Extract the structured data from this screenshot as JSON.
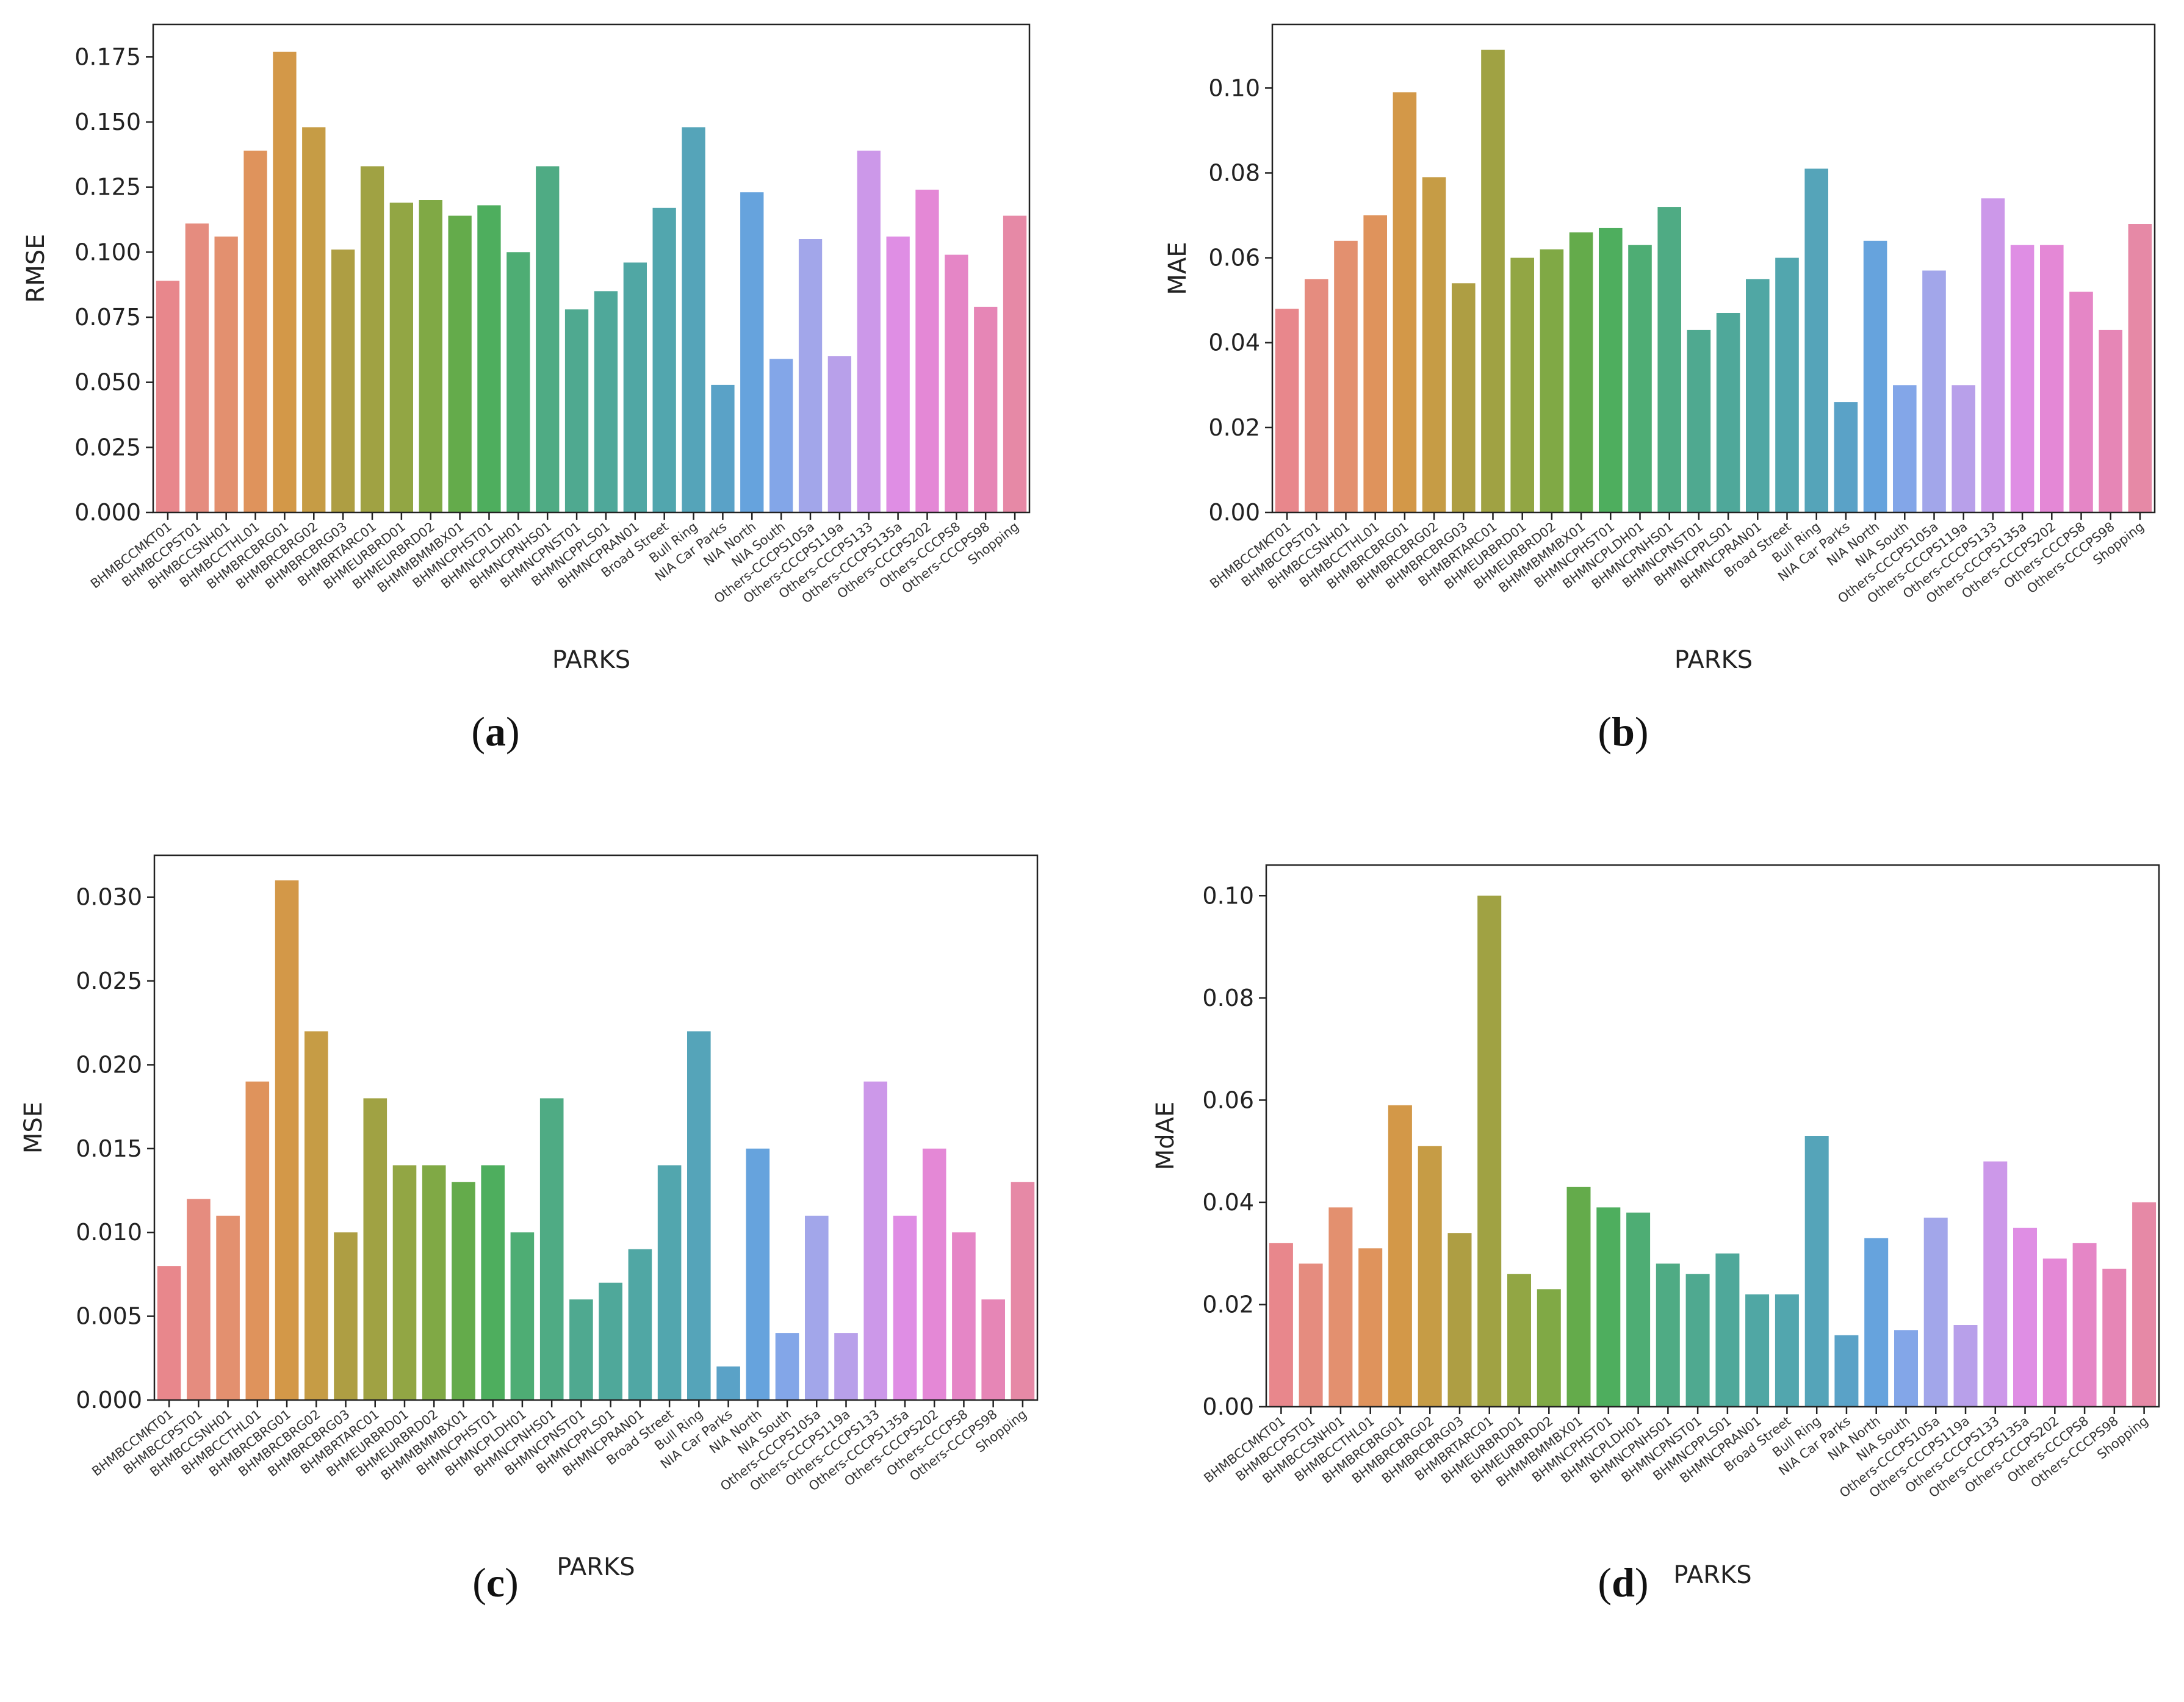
{
  "figure": {
    "colors": [
      "#e8878c",
      "#e58c7f",
      "#e3906f",
      "#df935c",
      "#d39848",
      "#c69c45",
      "#ae9e43",
      "#a0a243",
      "#92a644",
      "#80a945",
      "#64ab4b",
      "#4eae5e",
      "#4ead74",
      "#4fab84",
      "#4fa990",
      "#4fa89a",
      "#50a7a4",
      "#52a6ae",
      "#55a4b9",
      "#5aa2c7",
      "#66a3dd",
      "#83a6e8",
      "#a2a6ea",
      "#b8a0ea",
      "#cc98e9",
      "#df8ee4",
      "#e488d6",
      "#e586c6",
      "#e686b6",
      "#e689a6"
    ],
    "panels": [
      {
        "id": "a",
        "caption": "(a)",
        "chart_data": {
          "type": "bar",
          "title": "",
          "xlabel": "PARKS",
          "ylabel": "RMSE",
          "ylim": [
            0,
            0.1875
          ],
          "yticks": [
            0,
            0.025,
            0.05,
            0.075,
            0.1,
            0.125,
            0.15,
            0.175
          ],
          "ytick_labels": [
            "0.000",
            "0.025",
            "0.050",
            "0.075",
            "0.100",
            "0.125",
            "0.150",
            "0.175"
          ],
          "categories": [
            "BHMBCCMKT01",
            "BHMBCCPST01",
            "BHMBCCSNH01",
            "BHMBCCTHL01",
            "BHMBRCBRG01",
            "BHMBRCBRG02",
            "BHMBRCBRG03",
            "BHMBRTARC01",
            "BHMEURBRD01",
            "BHMEURBRD02",
            "BHMMBMMBX01",
            "BHMNCPHST01",
            "BHMNCPLDH01",
            "BHMNCPNHS01",
            "BHMNCPNST01",
            "BHMNCPPLS01",
            "BHMNCPRAN01",
            "Broad Street",
            "Bull Ring",
            "NIA Car Parks",
            "NIA North",
            "NIA South",
            "Others-CCCPS105a",
            "Others-CCCPS119a",
            "Others-CCCPS133",
            "Others-CCCPS135a",
            "Others-CCCPS202",
            "Others-CCCPS8",
            "Others-CCCPS98",
            "Shopping"
          ],
          "values": [
            0.089,
            0.111,
            0.106,
            0.139,
            0.177,
            0.148,
            0.101,
            0.133,
            0.119,
            0.12,
            0.114,
            0.118,
            0.1,
            0.133,
            0.078,
            0.085,
            0.096,
            0.117,
            0.148,
            0.049,
            0.123,
            0.059,
            0.105,
            0.06,
            0.139,
            0.106,
            0.124,
            0.099,
            0.079,
            0.114
          ]
        }
      },
      {
        "id": "b",
        "caption": "(b)",
        "chart_data": {
          "type": "bar",
          "title": "",
          "xlabel": "PARKS",
          "ylabel": "MAE",
          "ylim": [
            0,
            0.115
          ],
          "yticks": [
            0,
            0.02,
            0.04,
            0.06,
            0.08,
            0.1
          ],
          "ytick_labels": [
            "0.00",
            "0.02",
            "0.04",
            "0.06",
            "0.08",
            "0.10"
          ],
          "categories": [
            "BHMBCCMKT01",
            "BHMBCCPST01",
            "BHMBCCSNH01",
            "BHMBCCTHL01",
            "BHMBRCBRG01",
            "BHMBRCBRG02",
            "BHMBRCBRG03",
            "BHMBRTARC01",
            "BHMEURBRD01",
            "BHMEURBRD02",
            "BHMMBMMBX01",
            "BHMNCPHST01",
            "BHMNCPLDH01",
            "BHMNCPNHS01",
            "BHMNCPNST01",
            "BHMNCPPLS01",
            "BHMNCPRAN01",
            "Broad Street",
            "Bull Ring",
            "NIA Car Parks",
            "NIA North",
            "NIA South",
            "Others-CCCPS105a",
            "Others-CCCPS119a",
            "Others-CCCPS133",
            "Others-CCCPS135a",
            "Others-CCCPS202",
            "Others-CCCPS8",
            "Others-CCCPS98",
            "Shopping"
          ],
          "values": [
            0.048,
            0.055,
            0.064,
            0.07,
            0.099,
            0.079,
            0.054,
            0.109,
            0.06,
            0.062,
            0.066,
            0.067,
            0.063,
            0.072,
            0.043,
            0.047,
            0.055,
            0.06,
            0.081,
            0.026,
            0.064,
            0.03,
            0.057,
            0.03,
            0.074,
            0.063,
            0.063,
            0.052,
            0.043,
            0.068
          ]
        }
      },
      {
        "id": "c",
        "caption": "(c)",
        "chart_data": {
          "type": "bar",
          "title": "",
          "xlabel": "PARKS",
          "ylabel": "MSE",
          "ylim": [
            0,
            0.0325
          ],
          "yticks": [
            0,
            0.005,
            0.01,
            0.015,
            0.02,
            0.025,
            0.03
          ],
          "ytick_labels": [
            "0.000",
            "0.005",
            "0.010",
            "0.015",
            "0.020",
            "0.025",
            "0.030"
          ],
          "categories": [
            "BHMBCCMKT01",
            "BHMBCCPST01",
            "BHMBCCSNH01",
            "BHMBCCTHL01",
            "BHMBRCBRG01",
            "BHMBRCBRG02",
            "BHMBRCBRG03",
            "BHMBRTARC01",
            "BHMEURBRD01",
            "BHMEURBRD02",
            "BHMMBMMBX01",
            "BHMNCPHST01",
            "BHMNCPLDH01",
            "BHMNCPNHS01",
            "BHMNCPNST01",
            "BHMNCPPLS01",
            "BHMNCPRAN01",
            "Broad Street",
            "Bull Ring",
            "NIA Car Parks",
            "NIA North",
            "NIA South",
            "Others-CCCPS105a",
            "Others-CCCPS119a",
            "Others-CCCPS133",
            "Others-CCCPS135a",
            "Others-CCCPS202",
            "Others-CCCPS8",
            "Others-CCCPS98",
            "Shopping"
          ],
          "values": [
            0.008,
            0.012,
            0.011,
            0.019,
            0.031,
            0.022,
            0.01,
            0.018,
            0.014,
            0.014,
            0.013,
            0.014,
            0.01,
            0.018,
            0.006,
            0.007,
            0.009,
            0.014,
            0.022,
            0.002,
            0.015,
            0.004,
            0.011,
            0.004,
            0.019,
            0.011,
            0.015,
            0.01,
            0.006,
            0.013
          ]
        }
      },
      {
        "id": "d",
        "caption": "(d)",
        "chart_data": {
          "type": "bar",
          "title": "",
          "xlabel": "PARKS",
          "ylabel": "MdAE",
          "ylim": [
            0,
            0.106
          ],
          "yticks": [
            0,
            0.02,
            0.04,
            0.06,
            0.08,
            0.1
          ],
          "ytick_labels": [
            "0.00",
            "0.02",
            "0.04",
            "0.06",
            "0.08",
            "0.10"
          ],
          "categories": [
            "BHMBCCMKT01",
            "BHMBCCPST01",
            "BHMBCCSNH01",
            "BHMBCCTHL01",
            "BHMBRCBRG01",
            "BHMBRCBRG02",
            "BHMBRCBRG03",
            "BHMBRTARC01",
            "BHMEURBRD01",
            "BHMEURBRD02",
            "BHMMBMMBX01",
            "BHMNCPHST01",
            "BHMNCPLDH01",
            "BHMNCPNHS01",
            "BHMNCPNST01",
            "BHMNCPPLS01",
            "BHMNCPRAN01",
            "Broad Street",
            "Bull Ring",
            "NIA Car Parks",
            "NIA North",
            "NIA South",
            "Others-CCCPS105a",
            "Others-CCCPS119a",
            "Others-CCCPS133",
            "Others-CCCPS135a",
            "Others-CCCPS202",
            "Others-CCCPS8",
            "Others-CCCPS98",
            "Shopping"
          ],
          "values": [
            0.032,
            0.028,
            0.039,
            0.031,
            0.059,
            0.051,
            0.034,
            0.1,
            0.026,
            0.023,
            0.043,
            0.039,
            0.038,
            0.028,
            0.026,
            0.03,
            0.022,
            0.022,
            0.053,
            0.014,
            0.033,
            0.015,
            0.037,
            0.016,
            0.048,
            0.035,
            0.029,
            0.032,
            0.027,
            0.04
          ]
        }
      }
    ]
  }
}
